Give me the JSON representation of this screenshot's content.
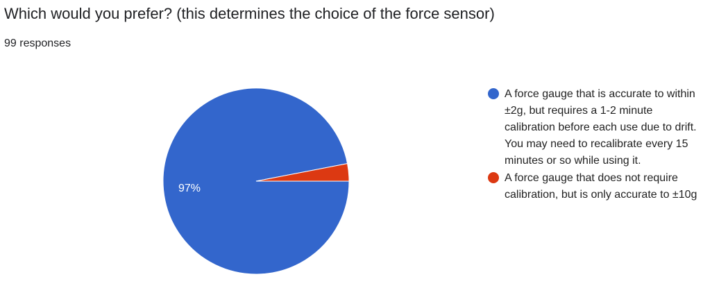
{
  "header": {
    "title": "Which would you prefer? (this determines the choice of the force sensor)",
    "responses": "99 responses"
  },
  "chart_data": {
    "type": "pie",
    "total_responses": 99,
    "slices": [
      {
        "name": "A force gauge that is accurate to within ±2g, but requires a 1-2 minute calibration before each use due to drift. You may need to recalibrate every 15 minutes or so while using it.",
        "value": 96,
        "percent": 97,
        "label": "97%",
        "color": "#3366cc"
      },
      {
        "name": "A force gauge that does not require calibration, but is only accurate to ±10g",
        "value": 3,
        "percent": 3,
        "label": "",
        "color": "#dc3912"
      }
    ],
    "legend_position": "right"
  },
  "legend": {
    "item0_lines": [
      "A force gauge that is accurate to within",
      "±2g, but requires a 1-2 minute",
      "calibration before each use due to drift.",
      "You may need to recalibrate every 15",
      "minutes or so while using it."
    ],
    "item1_lines": [
      "A force gauge that does not require",
      "calibration, but is only accurate to ±10g"
    ]
  }
}
